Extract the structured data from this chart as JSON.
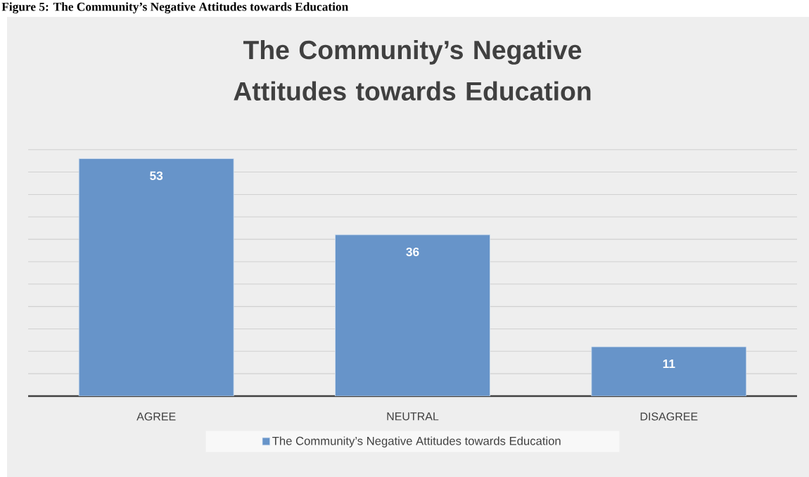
{
  "chart_data": {
    "type": "bar",
    "title": "The Community’s Negative Attitudes towards Education",
    "categories": [
      "AGREE",
      "NEUTRAL",
      "DISAGREE"
    ],
    "series": [
      {
        "name": "The Community’s Negative Attitudes towards Education",
        "color": "#6794c9",
        "values": [
          53,
          36,
          11
        ]
      }
    ],
    "tick_labels": "x",
    "grid": "y",
    "legend": "bottom",
    "data_labels": true,
    "annotations": [
      "Figure 5: The Community’s Negative Attitudes towards Education"
    ]
  }
}
